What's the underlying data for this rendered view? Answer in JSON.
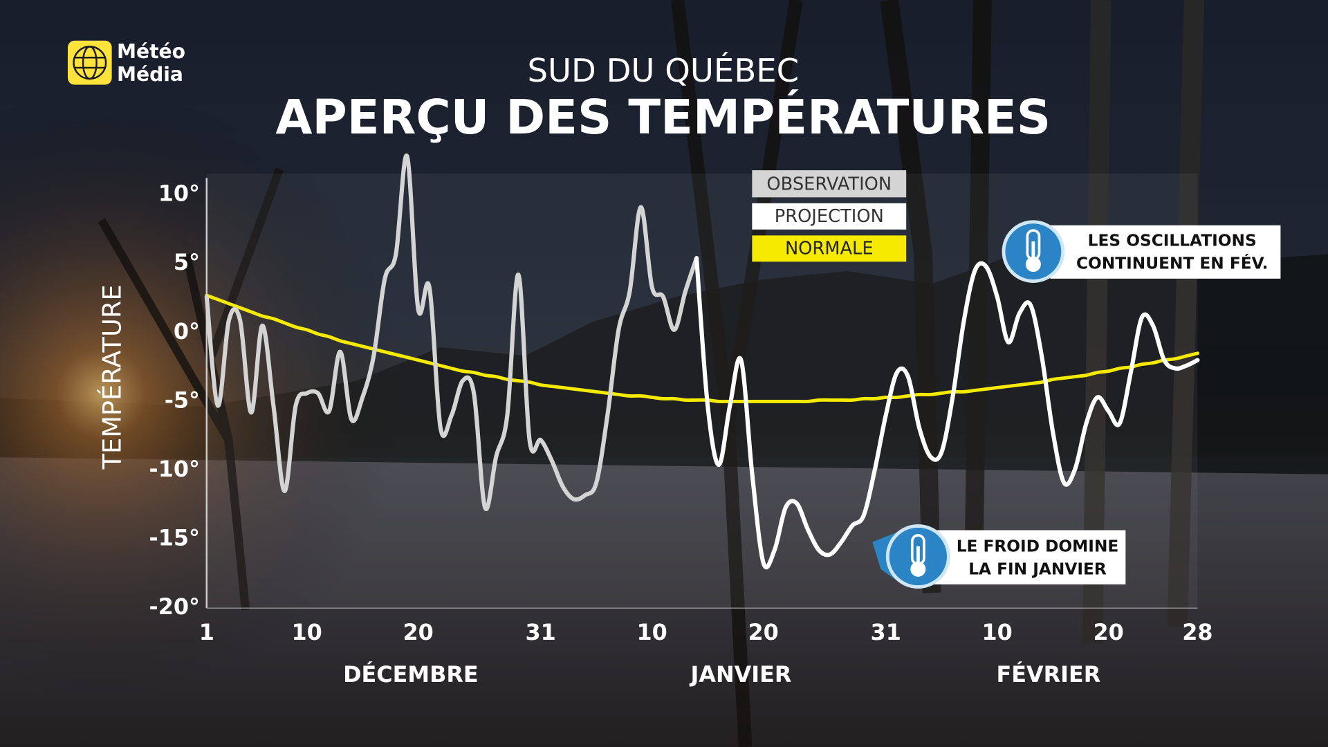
{
  "chart_data": {
    "type": "line",
    "brand": [
      "Météo",
      "Média"
    ],
    "subtitle": "SUD DU QUÉBEC",
    "title": "APERÇU DES TEMPÉRATURES",
    "y_label": "TEMPÉRATURE",
    "categories": [
      "1",
      null,
      null,
      null,
      null,
      null,
      null,
      null,
      null,
      "10",
      null,
      null,
      null,
      null,
      null,
      null,
      null,
      null,
      null,
      "20",
      null,
      null,
      null,
      null,
      null,
      null,
      null,
      null,
      null,
      null,
      "31",
      null,
      null,
      null,
      null,
      null,
      null,
      null,
      null,
      null,
      "10",
      null,
      null,
      null,
      null,
      null,
      null,
      null,
      null,
      null,
      "20",
      null,
      null,
      null,
      null,
      null,
      null,
      null,
      null,
      null,
      null,
      "31",
      null,
      null,
      null,
      null,
      null,
      null,
      null,
      null,
      null,
      "10",
      null,
      null,
      null,
      null,
      null,
      null,
      null,
      null,
      null,
      "20",
      null,
      null,
      null,
      null,
      null,
      null,
      null,
      "28"
    ],
    "month_labels": [
      "DÉCEMBRE",
      "JANVIER",
      "FÉVRIER"
    ],
    "ylim": [
      -20,
      10
    ],
    "yticks": [
      {
        "value": 10,
        "label": "10°"
      },
      {
        "value": 5,
        "label": "5°"
      },
      {
        "value": 0,
        "label": "0°"
      },
      {
        "value": -5,
        "label": "-5°"
      },
      {
        "value": -10,
        "label": "-10°"
      },
      {
        "value": -15,
        "label": "-15°"
      },
      {
        "value": -20,
        "label": "-20°"
      }
    ],
    "series": [
      {
        "name": "OBSERVATION",
        "color": "#d4d4d4",
        "values": [
          2.6,
          -5.3,
          0.9,
          0.9,
          -5.8,
          0.5,
          -5.3,
          -11.5,
          -5.3,
          -4.4,
          -4.4,
          -5.7,
          -1.4,
          -6.3,
          -4.7,
          -1.7,
          3.9,
          5.7,
          12.8,
          1.7,
          3.3,
          -6.9,
          -6.0,
          -3.5,
          -4.4,
          -12.7,
          -9.0,
          -6.0,
          4.2,
          -7.8,
          -7.8,
          -9.3,
          -11.2,
          -12.1,
          -11.8,
          -10.9,
          -6.0,
          0.2,
          3.0,
          9.1,
          3.3,
          2.6,
          0.2,
          3.0,
          5.4,
          null,
          null,
          null,
          null,
          null,
          null,
          null,
          null,
          null,
          null,
          null,
          null,
          null,
          null,
          null,
          null,
          null,
          null,
          null,
          null,
          null,
          null,
          null,
          null,
          null,
          null,
          null,
          null,
          null,
          null,
          null,
          null,
          null,
          null,
          null,
          null,
          null,
          null,
          null,
          null,
          null,
          null,
          null,
          null,
          null
        ]
      },
      {
        "name": "PROJECTION",
        "color": "#ffffff",
        "values": [
          null,
          null,
          null,
          null,
          null,
          null,
          null,
          null,
          null,
          null,
          null,
          null,
          null,
          null,
          null,
          null,
          null,
          null,
          null,
          null,
          null,
          null,
          null,
          null,
          null,
          null,
          null,
          null,
          null,
          null,
          null,
          null,
          null,
          null,
          null,
          null,
          null,
          null,
          null,
          null,
          null,
          null,
          null,
          null,
          5.4,
          -5.3,
          -9.6,
          -5.3,
          -2.0,
          -10.3,
          -16.7,
          -15.8,
          -12.7,
          -12.4,
          -14.3,
          -15.8,
          -16.1,
          -15.2,
          -14.0,
          -13.3,
          -10.0,
          -6.0,
          -2.9,
          -3.2,
          -6.9,
          -9.0,
          -8.7,
          -4.7,
          0.8,
          4.5,
          4.8,
          2.6,
          -0.7,
          1.4,
          2.0,
          -1.7,
          -7.2,
          -10.9,
          -9.9,
          -6.6,
          -4.7,
          -5.7,
          -6.6,
          -2.9,
          1.1,
          0.5,
          -2.0,
          -2.6,
          -2.4,
          -2.0
        ]
      },
      {
        "name": "NORMALE",
        "color": "#f5ea00",
        "values": [
          2.7,
          2.4,
          2.1,
          1.8,
          1.5,
          1.2,
          1.0,
          0.7,
          0.4,
          0.2,
          -0.1,
          -0.3,
          -0.6,
          -0.8,
          -1.0,
          -1.2,
          -1.4,
          -1.6,
          -1.8,
          -2.0,
          -2.2,
          -2.4,
          -2.6,
          -2.8,
          -2.9,
          -3.1,
          -3.2,
          -3.4,
          -3.5,
          -3.6,
          -3.8,
          -3.9,
          -4.0,
          -4.1,
          -4.2,
          -4.3,
          -4.4,
          -4.5,
          -4.6,
          -4.6,
          -4.7,
          -4.8,
          -4.8,
          -4.9,
          -4.9,
          -4.9,
          -5.0,
          -5.0,
          -5.0,
          -5.0,
          -5.0,
          -5.0,
          -5.0,
          -5.0,
          -5.0,
          -4.9,
          -4.9,
          -4.9,
          -4.9,
          -4.8,
          -4.8,
          -4.7,
          -4.7,
          -4.6,
          -4.5,
          -4.5,
          -4.4,
          -4.3,
          -4.3,
          -4.2,
          -4.1,
          -4.0,
          -3.9,
          -3.8,
          -3.7,
          -3.6,
          -3.4,
          -3.3,
          -3.2,
          -3.1,
          -2.9,
          -2.8,
          -2.6,
          -2.5,
          -2.3,
          -2.2,
          -2.0,
          -1.9,
          -1.7,
          -1.5
        ]
      }
    ],
    "annotations": [
      {
        "lines": [
          "LES OSCILLATIONS",
          "CONTINUENT EN FÉV."
        ]
      },
      {
        "lines": [
          "LE FROID DOMINE",
          "LA FIN JANVIER"
        ]
      }
    ]
  }
}
